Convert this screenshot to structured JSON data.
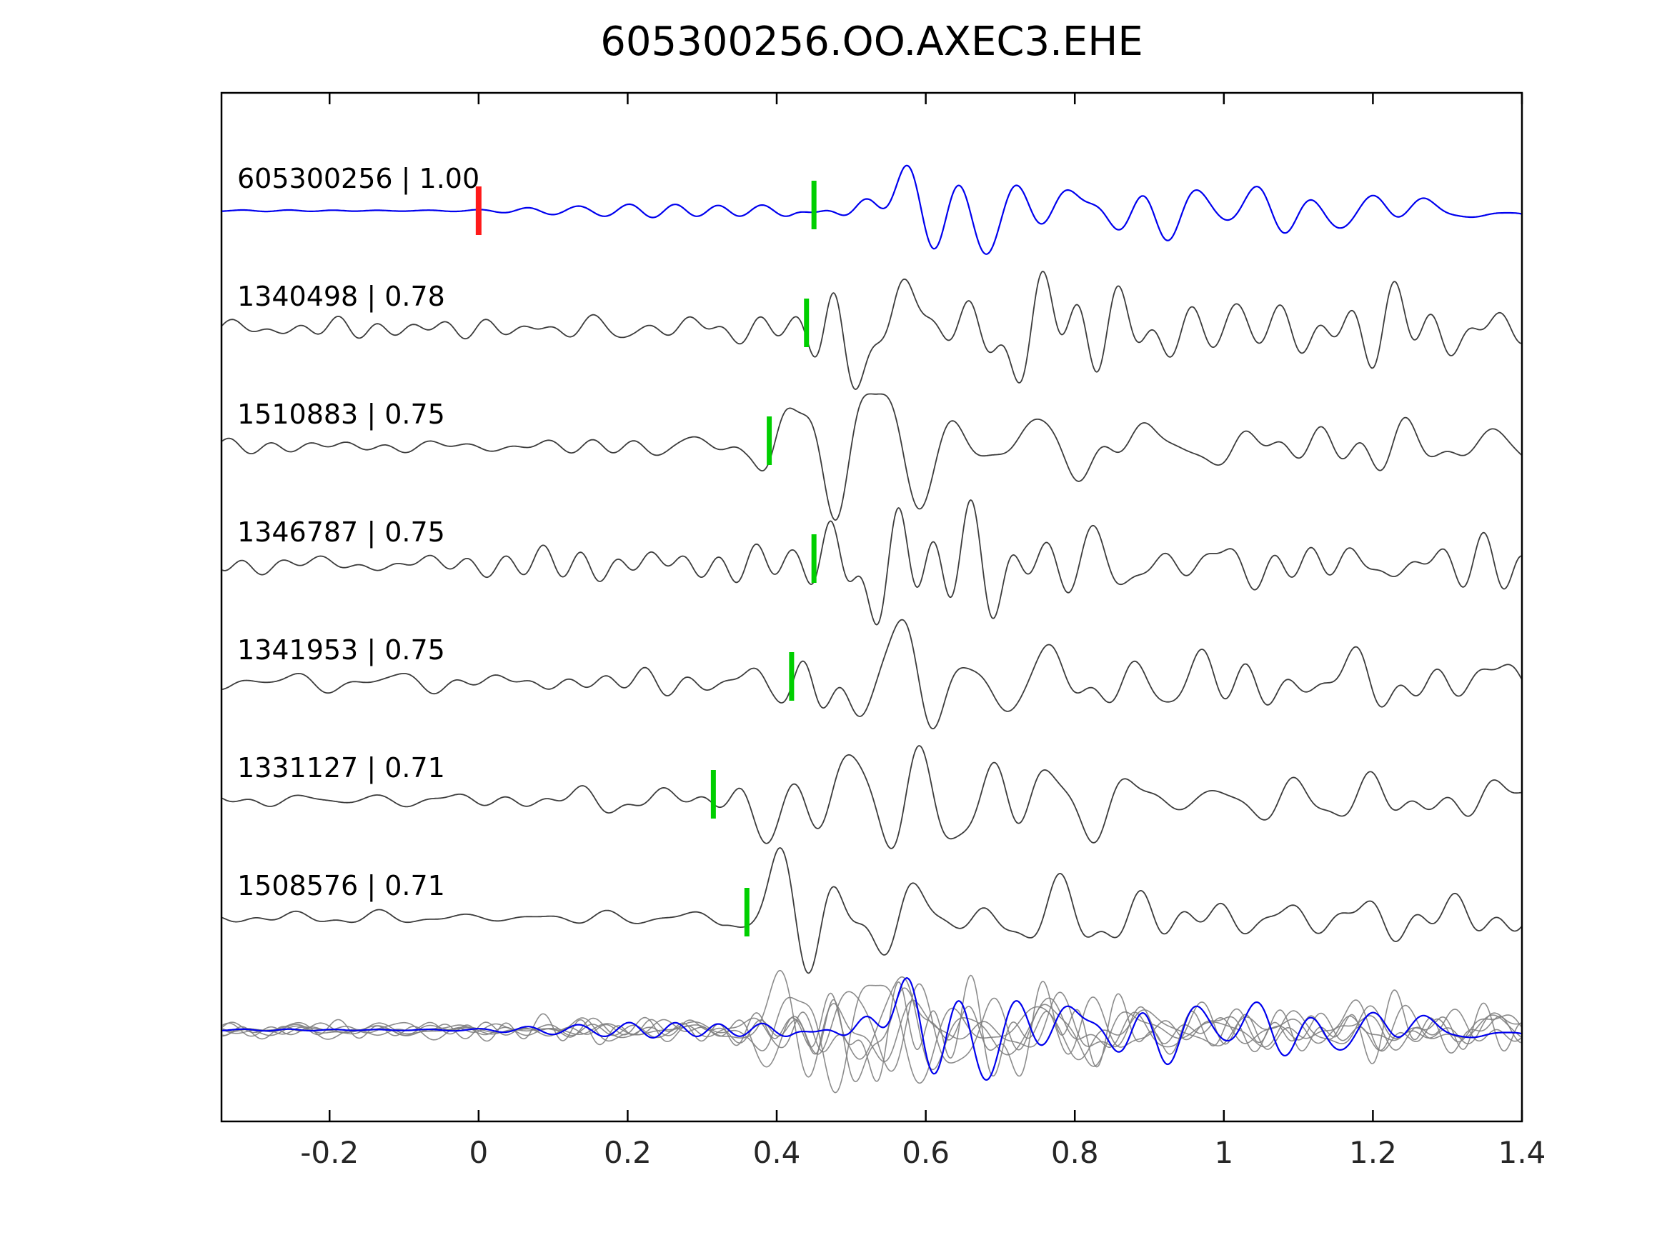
{
  "title": "605300256.OO.AXEC3.EHE",
  "chart_data": {
    "type": "line",
    "title": "605300256.OO.AXEC3.EHE",
    "xlabel": "",
    "ylabel": "",
    "xlim": [
      -0.345,
      1.4
    ],
    "grid": false,
    "legend_position": "none",
    "xticks": [
      "-0.2",
      "0",
      "0.2",
      "0.4",
      "0.6",
      "0.8",
      "1",
      "1.2",
      "1.4"
    ],
    "xtick_values": [
      -0.2,
      0,
      0.2,
      0.4,
      0.6,
      0.8,
      1,
      1.2,
      1.4
    ],
    "colors": {
      "template_trace": "#0000ee",
      "detection_trace": "#3c3c3c",
      "overlay_trace": "#808080",
      "pick_marker": "#00cf00",
      "origin_marker": "#ff1a1a",
      "axis": "#000000",
      "tick_label": "#262626"
    },
    "description": "Template waveform (blue, top) with six cross-correlation detections (gray) and an overlay of all traces at the bottom. Green bars mark pick times; red bar marks zero time on the template trace.",
    "traces": [
      {
        "id": "605300256",
        "cc": "1.00",
        "label": "605300256 | 1.00",
        "role": "template",
        "pick_time": 0.45,
        "origin_marker": 0.0,
        "amplitude": 0.62,
        "noise_level": 0.06,
        "coda_level": 0.3
      },
      {
        "id": "1340498",
        "cc": "0.78",
        "label": "1340498 | 0.78",
        "role": "detection",
        "pick_time": 0.44,
        "origin_marker": null,
        "amplitude": 0.85,
        "noise_level": 0.13,
        "coda_level": 0.17
      },
      {
        "id": "1510883",
        "cc": "0.75",
        "label": "1510883 | 0.75",
        "role": "detection",
        "pick_time": 0.39,
        "origin_marker": null,
        "amplitude": 0.85,
        "noise_level": 0.09,
        "coda_level": 0.16
      },
      {
        "id": "1346787",
        "cc": "0.75",
        "label": "1346787 | 0.75",
        "role": "detection",
        "pick_time": 0.45,
        "origin_marker": null,
        "amplitude": 0.8,
        "noise_level": 0.14,
        "coda_level": 0.18
      },
      {
        "id": "1341953",
        "cc": "0.75",
        "label": "1341953 | 0.75",
        "role": "detection",
        "pick_time": 0.42,
        "origin_marker": null,
        "amplitude": 0.9,
        "noise_level": 0.13,
        "coda_level": 0.22
      },
      {
        "id": "1331127",
        "cc": "0.71",
        "label": "1331127 | 0.71",
        "role": "detection",
        "pick_time": 0.315,
        "origin_marker": null,
        "amplitude": 0.8,
        "noise_level": 0.12,
        "coda_level": 0.13
      },
      {
        "id": "1508576",
        "cc": "0.71",
        "label": "1508576 | 0.71",
        "role": "detection",
        "pick_time": 0.36,
        "origin_marker": null,
        "amplitude": 0.7,
        "noise_level": 0.08,
        "coda_level": 0.11
      }
    ],
    "overlay_row": {
      "content": "all traces overlaid",
      "template_on_top": true
    }
  }
}
